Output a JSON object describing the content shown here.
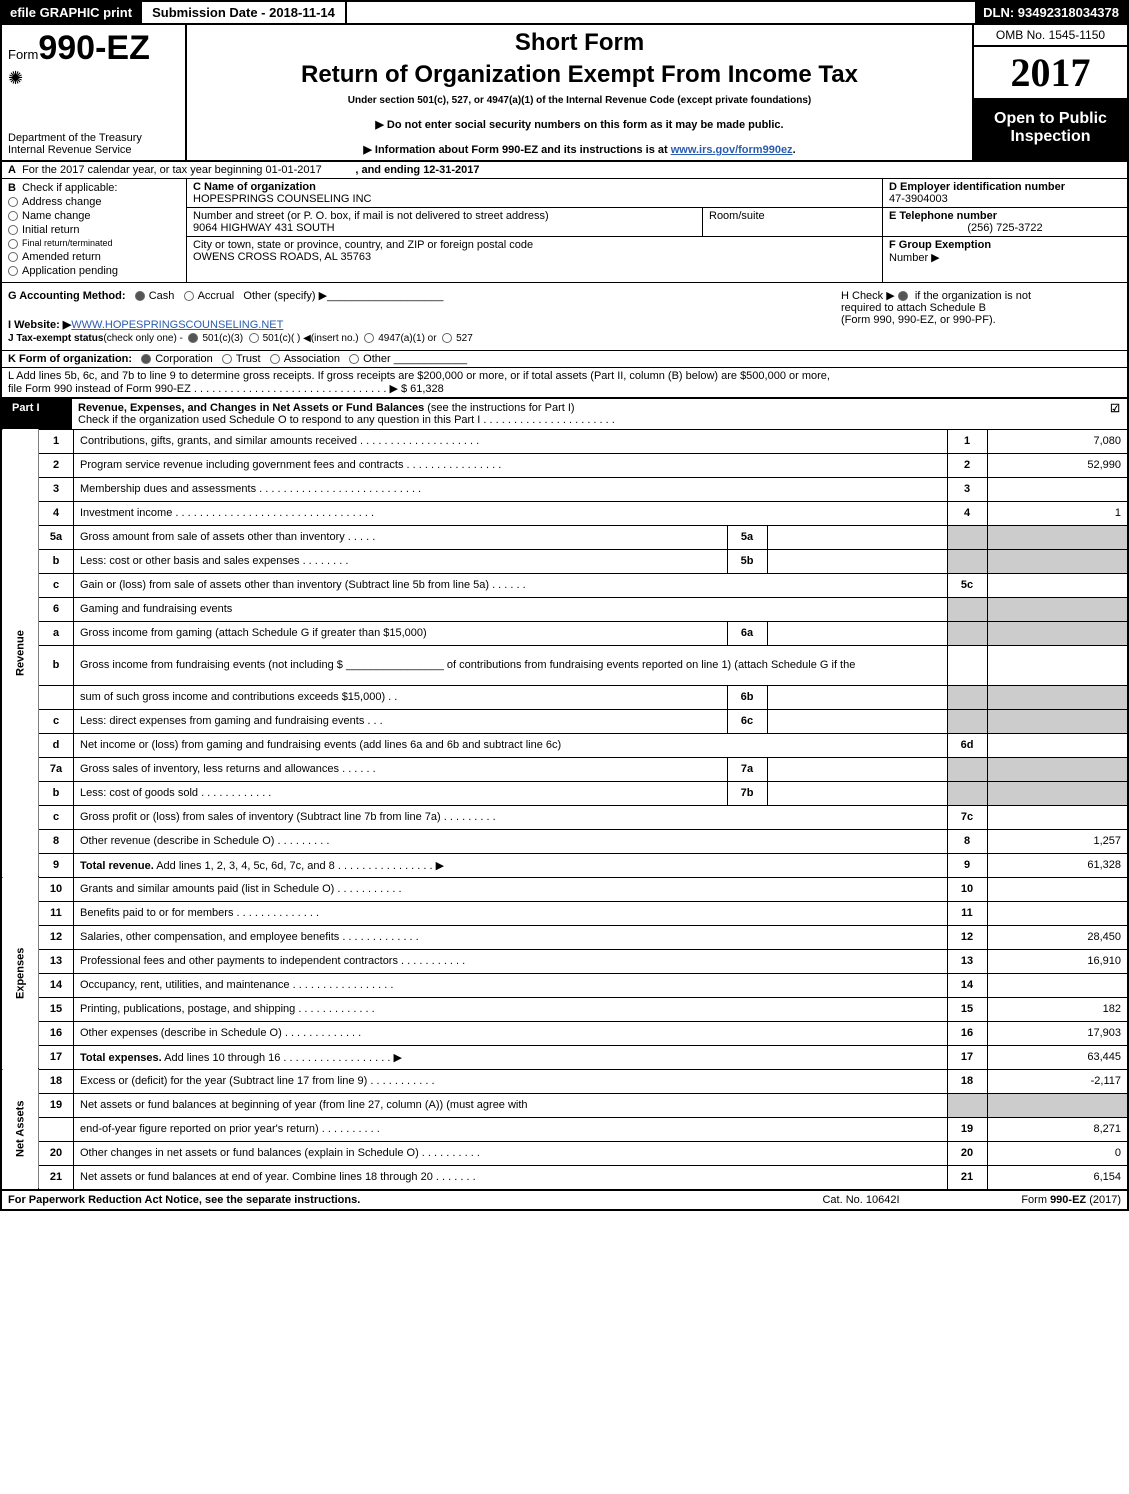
{
  "topbar": {
    "efile": "efile GRAPHIC print",
    "submission": "Submission Date - 2018-11-14",
    "dln": "DLN: 93492318034378"
  },
  "header": {
    "form_prefix": "Form",
    "form_number": "990-EZ",
    "dept1": "Department of the Treasury",
    "dept2": "Internal Revenue Service",
    "short_form": "Short Form",
    "return_title": "Return of Organization Exempt From Income Tax",
    "under_section": "Under section 501(c), 527, or 4947(a)(1) of the Internal Revenue Code (except private foundations)",
    "warn1": "▶ Do not enter social security numbers on this form as it may be made public.",
    "warn2_pre": "▶ Information about Form 990-EZ and its instructions is at ",
    "warn2_link": "www.irs.gov/form990ez",
    "warn2_post": ".",
    "omb": "OMB No. 1545-1150",
    "year": "2017",
    "open1": "Open to Public",
    "open2": "Inspection"
  },
  "line_a": {
    "label_a": "A",
    "text": "For the 2017 calendar year, or tax year beginning 01-01-2017",
    "ending": ", and ending 12-31-2017"
  },
  "section_b": {
    "label_b": "B",
    "check_if": "Check if applicable:",
    "items": [
      "Address change",
      "Name change",
      "Initial return",
      "Final return/terminated",
      "Amended return",
      "Application pending"
    ],
    "c_label": "C Name of organization",
    "c_name": "HOPESPRINGS COUNSELING INC",
    "addr_label": "Number and street (or P. O. box, if mail is not delivered to street address)",
    "addr": "9064 HIGHWAY 431 SOUTH",
    "room_label": "Room/suite",
    "city_label": "City or town, state or province, country, and ZIP or foreign postal code",
    "city": "OWENS CROSS ROADS, AL  35763",
    "d_label": "D Employer identification number",
    "d_ein": "47-3904003",
    "e_label": "E Telephone number",
    "e_phone": "(256) 725-3722",
    "f_label": "F Group Exemption",
    "f_label2": "Number  ▶"
  },
  "section_g": {
    "g_label": "G Accounting Method:",
    "cash": "Cash",
    "accrual": "Accrual",
    "other": "Other (specify) ▶",
    "h_text1": "H  Check ▶",
    "h_text2": "if the organization is not",
    "h_text3": "required to attach Schedule B",
    "h_text4": "(Form 990, 990-EZ, or 990-PF).",
    "i_label": "I Website: ▶",
    "i_site": "WWW.HOPESPRINGSCOUNSELING.NET",
    "j_label": "J Tax-exempt status",
    "j_text": "(check only one) -",
    "j_1": "501(c)(3)",
    "j_2": "501(c)(  ) ◀(insert no.)",
    "j_3": "4947(a)(1) or",
    "j_4": "527"
  },
  "line_k": {
    "label": "K Form of organization:",
    "corp": "Corporation",
    "trust": "Trust",
    "assoc": "Association",
    "other": "Other"
  },
  "line_l": {
    "text1": "L Add lines 5b, 6c, and 7b to line 9 to determine gross receipts. If gross receipts are $200,000 or more, or if total assets (Part II, column (B) below) are $500,000 or more,",
    "text2": "file Form 990 instead of Form 990-EZ  . . . . . . . . . . . . . . . . . . . . . . . . . . . . . . . .  ▶ $ 61,328"
  },
  "part1_header": {
    "part": "Part I",
    "title_bold": "Revenue, Expenses, and Changes in Net Assets or Fund Balances",
    "title_rest": " (see the instructions for Part I)",
    "check_line": "Check if the organization used Schedule O to respond to any question in this Part I . . . . . . . . . . . . . . . . . . . . . ."
  },
  "sides": {
    "revenue": "Revenue",
    "expenses": "Expenses",
    "netassets": "Net Assets"
  },
  "lines": [
    {
      "n": "1",
      "desc": "Contributions, gifts, grants, and similar amounts received . . . . . . . . . . . . . . . . . . . .",
      "rn": "1",
      "rv": "7,080"
    },
    {
      "n": "2",
      "desc": "Program service revenue including government fees and contracts . . . . . . . . . . . . . . . .",
      "rn": "2",
      "rv": "52,990"
    },
    {
      "n": "3",
      "desc": "Membership dues and assessments . . . . . . . . . . . . . . . . . . . . . . . . . . .",
      "rn": "3",
      "rv": ""
    },
    {
      "n": "4",
      "desc": "Investment income . . . . . . . . . . . . . . . . . . . . . . . . . . . . . . . . .",
      "rn": "4",
      "rv": "1"
    },
    {
      "n": "5a",
      "desc": "Gross amount from sale of assets other than inventory . . . . .",
      "in": "5a",
      "shade": true
    },
    {
      "n": "b",
      "desc": "Less: cost or other basis and sales expenses . . . . . . . .",
      "in": "5b",
      "shade": true
    },
    {
      "n": "c",
      "desc": "Gain or (loss) from sale of assets other than inventory (Subtract line 5b from line 5a)      . . . . . .",
      "rn": "5c",
      "rv": ""
    },
    {
      "n": "6",
      "desc": "Gaming and fundraising events",
      "shade": true,
      "rn_shade": true
    },
    {
      "n": "a",
      "desc": "Gross income from gaming (attach Schedule G if greater than $15,000)",
      "in": "6a",
      "shade": true
    },
    {
      "n": "b",
      "desc": "Gross income from fundraising events (not including $ ________________ of contributions from fundraising events reported on line 1) (attach Schedule G if the",
      "shade": true,
      "tall": true
    },
    {
      "n": "",
      "desc": "sum of such gross income and contributions exceeds $15,000)     . .",
      "in": "6b",
      "shade": true
    },
    {
      "n": "c",
      "desc": "Less: direct expenses from gaming and fundraising events     . . .",
      "in": "6c",
      "shade": true
    },
    {
      "n": "d",
      "desc": "Net income or (loss) from gaming and fundraising events (add lines 6a and 6b and subtract line 6c)",
      "rn": "6d",
      "rv": ""
    },
    {
      "n": "7a",
      "desc": "Gross sales of inventory, less returns and allowances      . . . . . .",
      "in": "7a",
      "shade": true
    },
    {
      "n": "b",
      "desc": "Less: cost of goods sold        . . . . . . . . . . . .",
      "in": "7b",
      "shade": true
    },
    {
      "n": "c",
      "desc": "Gross profit or (loss) from sales of inventory (Subtract line 7b from line 7a)      . . . . . . . . .",
      "rn": "7c",
      "rv": ""
    },
    {
      "n": "8",
      "desc": "Other revenue (describe in Schedule O)          . . . . . . . . .",
      "rn": "8",
      "rv": "1,257"
    },
    {
      "n": "9",
      "desc": "Total revenue. Add lines 1, 2, 3, 4, 5c, 6d, 7c, and 8    . . . . . . . . . . . . . . . .  ▶",
      "rn": "9",
      "rv": "61,328",
      "bold": true
    }
  ],
  "exp_lines": [
    {
      "n": "10",
      "desc": "Grants and similar amounts paid (list in Schedule O)       . . . . . . . . . . .",
      "rn": "10",
      "rv": ""
    },
    {
      "n": "11",
      "desc": "Benefits paid to or for members          . . . . . . . . . . . . . .",
      "rn": "11",
      "rv": ""
    },
    {
      "n": "12",
      "desc": "Salaries, other compensation, and employee benefits      . . . . . . . . . . . . .",
      "rn": "12",
      "rv": "28,450"
    },
    {
      "n": "13",
      "desc": "Professional fees and other payments to independent contractors    . . . . . . . . . . .",
      "rn": "13",
      "rv": "16,910"
    },
    {
      "n": "14",
      "desc": "Occupancy, rent, utilities, and maintenance     . . . . . . . . . . . . . . . . .",
      "rn": "14",
      "rv": ""
    },
    {
      "n": "15",
      "desc": "Printing, publications, postage, and shipping       . . . . . . . . . . . . .",
      "rn": "15",
      "rv": "182"
    },
    {
      "n": "16",
      "desc": "Other expenses (describe in Schedule O)        . . . . . . . . . . . . .",
      "rn": "16",
      "rv": "17,903"
    },
    {
      "n": "17",
      "desc": "Total expenses. Add lines 10 through 16     . . . . . . . . . . . . . . . . . .  ▶",
      "rn": "17",
      "rv": "63,445",
      "bold": true
    }
  ],
  "na_lines": [
    {
      "n": "18",
      "desc": "Excess or (deficit) for the year (Subtract line 17 from line 9)     . . . . . . . . . . .",
      "rn": "18",
      "rv": "-2,117"
    },
    {
      "n": "19",
      "desc": "Net assets or fund balances at beginning of year (from line 27, column (A)) (must agree with",
      "shade": true,
      "rn_shade": true
    },
    {
      "n": "",
      "desc": "end-of-year figure reported on prior year's return)       . . . . . . . . . .",
      "rn": "19",
      "rv": "8,271"
    },
    {
      "n": "20",
      "desc": "Other changes in net assets or fund balances (explain in Schedule O)    . . . . . . . . . .",
      "rn": "20",
      "rv": "0"
    },
    {
      "n": "21",
      "desc": "Net assets or fund balances at end of year. Combine lines 18 through 20     . . . . . . .",
      "rn": "21",
      "rv": "6,154"
    }
  ],
  "footer": {
    "f1": "For Paperwork Reduction Act Notice, see the separate instructions.",
    "f2": "Cat. No. 10642I",
    "f3_pre": "Form ",
    "f3_bold": "990-EZ",
    "f3_post": " (2017)"
  },
  "colors": {
    "black": "#000000",
    "white": "#ffffff",
    "shade": "#cccccc",
    "link": "#2a5db0"
  }
}
